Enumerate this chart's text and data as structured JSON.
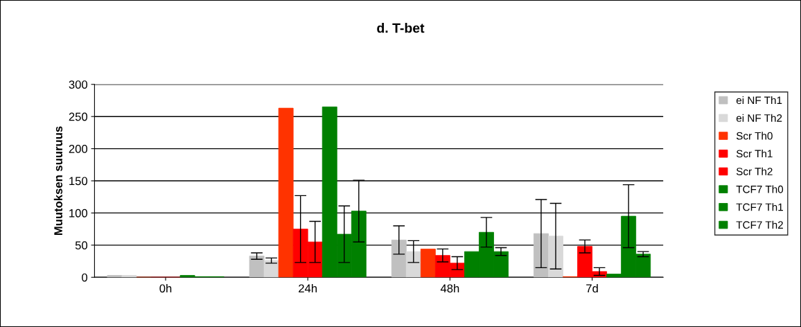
{
  "chart_data": {
    "type": "bar",
    "title": "d. T-bet",
    "ylabel": "Muutoksen suuruus",
    "categories": [
      "0h",
      "24h",
      "48h",
      "7d"
    ],
    "ylim": [
      0,
      300
    ],
    "yticks": [
      0,
      50,
      100,
      150,
      200,
      250,
      300
    ],
    "grid": "y",
    "legend": "right",
    "series": [
      {
        "name": "ei NF Th1",
        "color": "#c0c0c0",
        "values": [
          3,
          33,
          58,
          68
        ],
        "errors": [
          null,
          5,
          22,
          53
        ]
      },
      {
        "name": "ei NF Th2",
        "color": "#d9d9d9",
        "values": [
          3,
          26,
          40,
          64
        ],
        "errors": [
          null,
          4,
          17,
          51
        ]
      },
      {
        "name": "Scr Th0",
        "color": "#ff3300",
        "values": [
          0,
          263,
          44,
          1
        ],
        "errors": [
          null,
          null,
          null,
          null
        ]
      },
      {
        "name": "Scr Th1",
        "color": "#ff0000",
        "values": [
          0,
          75,
          34,
          48
        ],
        "errors": [
          null,
          52,
          10,
          10
        ]
      },
      {
        "name": "Scr Th2",
        "color": "#ff0000",
        "values": [
          0,
          55,
          22,
          9
        ],
        "errors": [
          null,
          32,
          10,
          6
        ]
      },
      {
        "name": "TCF7 Th0",
        "color": "#008000",
        "values": [
          3,
          265,
          40,
          5
        ],
        "errors": [
          null,
          null,
          null,
          null
        ]
      },
      {
        "name": "TCF7 Th1",
        "color": "#008000",
        "values": [
          1,
          67,
          70,
          95
        ],
        "errors": [
          null,
          44,
          23,
          49
        ]
      },
      {
        "name": "TCF7 Th2",
        "color": "#008000",
        "values": [
          1,
          103,
          40,
          36
        ],
        "errors": [
          null,
          48,
          6,
          4
        ]
      }
    ]
  }
}
